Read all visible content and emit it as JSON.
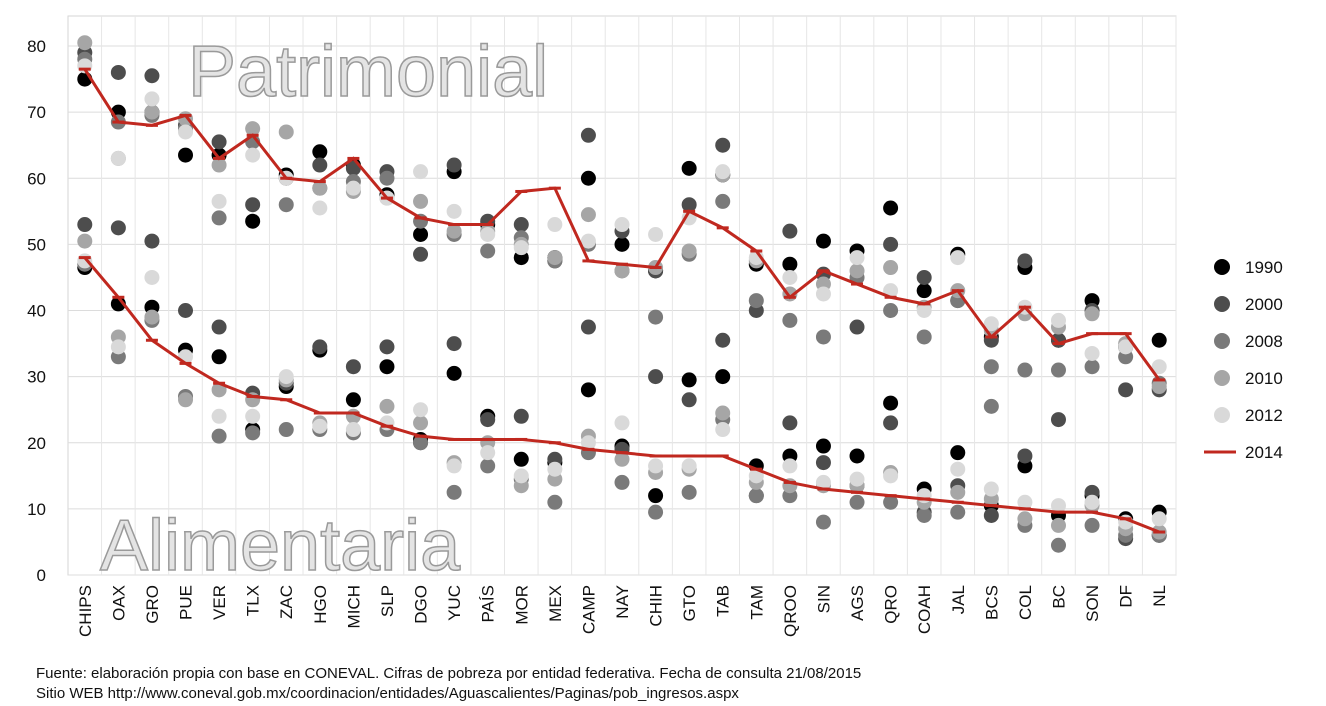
{
  "chart_data": {
    "type": "dot-line",
    "groups": [
      "Patrimonial",
      "Alimentaria"
    ],
    "categories": [
      "CHIPS",
      "OAX",
      "GRO",
      "PUE",
      "VER",
      "TLX",
      "ZAC",
      "HGO",
      "MICH",
      "SLP",
      "DGO",
      "YUC",
      "PAÍS",
      "MOR",
      "MEX",
      "CAMP",
      "NAY",
      "CHIH",
      "GTO",
      "TAB",
      "TAM",
      "QROO",
      "SIN",
      "AGS",
      "QRO",
      "COAH",
      "JAL",
      "BCS",
      "COL",
      "BC",
      "SON",
      "DF",
      "NL"
    ],
    "ylim": [
      0,
      80
    ],
    "yticks": [
      0,
      10,
      20,
      30,
      40,
      50,
      60,
      70,
      80
    ],
    "grid": true,
    "legend": "right",
    "series": [
      {
        "name": "1990",
        "color": "#000000",
        "mark": "dot",
        "values": [
          [
            75,
            70,
            70,
            63.5,
            63.5,
            53.5,
            60.5,
            64,
            62,
            57.5,
            51.5,
            61,
            53,
            48,
            48,
            60,
            50,
            46,
            61.5,
            60.5,
            47,
            47,
            50.5,
            49,
            55.5,
            43,
            48.5,
            36,
            46.5,
            35.5,
            41.5,
            34.5,
            35.5
          ],
          [
            46.5,
            41,
            40.5,
            34,
            33,
            22,
            28.5,
            34,
            26.5,
            31.5,
            20.5,
            30.5,
            24,
            17.5,
            17,
            28,
            19.5,
            12,
            29.5,
            30,
            16.5,
            18,
            19.5,
            18,
            26,
            13,
            18.5,
            10.5,
            16.5,
            9,
            12,
            8.5,
            9.5
          ]
        ]
      },
      {
        "name": "2000",
        "color": "#4d4d4d",
        "mark": "dot",
        "values": [
          [
            79,
            76,
            75.5,
            68,
            65.5,
            56,
            60,
            62,
            61.5,
            61,
            48.5,
            62,
            53.5,
            53,
            47.5,
            66.5,
            52,
            46,
            56,
            65,
            40,
            52,
            45.5,
            37.5,
            50,
            45,
            41.5,
            35.5,
            47.5,
            35.5,
            40,
            28,
            28
          ],
          [
            53,
            52.5,
            50.5,
            40,
            37.5,
            27.5,
            29,
            34.5,
            31.5,
            34.5,
            20,
            35,
            23.5,
            24,
            17.5,
            37.5,
            19,
            30,
            26.5,
            35.5,
            12,
            23,
            17,
            13.5,
            23,
            9.5,
            13.5,
            9,
            18,
            23.5,
            12.5,
            5.5,
            6
          ]
        ]
      },
      {
        "name": "2008",
        "color": "#7a7a7a",
        "mark": "dot",
        "values": [
          [
            78,
            68.5,
            69.5,
            67.5,
            54,
            65.5,
            56,
            58.5,
            59.5,
            60,
            53.5,
            51.5,
            49,
            51,
            47.5,
            50,
            46,
            39,
            48.5,
            56.5,
            41.5,
            38.5,
            36,
            45,
            40,
            36,
            41.5,
            31.5,
            31,
            31,
            31.5,
            33,
            29
          ],
          [
            47,
            33,
            38.5,
            27,
            21,
            21.5,
            22,
            22,
            21.5,
            22,
            20,
            12.5,
            16.5,
            14.5,
            11,
            18.5,
            14,
            9.5,
            12.5,
            23.5,
            12,
            12,
            8,
            11,
            11,
            9,
            9.5,
            25.5,
            7.5,
            4.5,
            7.5,
            6,
            6
          ]
        ]
      },
      {
        "name": "2010",
        "color": "#a6a6a6",
        "mark": "dot",
        "values": [
          [
            80.5,
            63,
            70,
            69,
            62,
            67.5,
            67,
            58.5,
            58,
            57,
            56.5,
            52,
            52,
            50,
            48,
            54.5,
            46,
            46.5,
            49,
            60.5,
            47.5,
            42.5,
            44,
            46,
            46.5,
            40.5,
            43,
            37,
            39.5,
            37.5,
            39.5,
            35,
            28.5
          ],
          [
            50.5,
            36,
            39,
            26.5,
            28,
            26.5,
            29.5,
            23,
            24,
            25.5,
            23,
            17,
            20,
            13.5,
            14.5,
            21,
            17.5,
            15.5,
            16,
            24.5,
            14,
            13.5,
            13.5,
            13.5,
            15.5,
            11,
            12.5,
            11.5,
            8.5,
            7.5,
            10.5,
            7,
            6.5
          ]
        ]
      },
      {
        "name": "2012",
        "color": "#d9d9d9",
        "mark": "dot",
        "values": [
          [
            77,
            63,
            72,
            67,
            56.5,
            63.5,
            60,
            55.5,
            58.5,
            57,
            61,
            55,
            51.5,
            49.5,
            53,
            50.5,
            53,
            51.5,
            54,
            61,
            48,
            45,
            42.5,
            48,
            43,
            40,
            48,
            38,
            40.5,
            38.5,
            33.5,
            34.5,
            31.5
          ],
          [
            47.5,
            34.5,
            45,
            33,
            24,
            24,
            30,
            22.5,
            22,
            23,
            25,
            16.5,
            18.5,
            15,
            16,
            20,
            23,
            16.5,
            16.5,
            22,
            15,
            16.5,
            14,
            14.5,
            15,
            12,
            16,
            13,
            11,
            10.5,
            11,
            8,
            8.5
          ]
        ]
      },
      {
        "name": "2014",
        "color": "#c0281f",
        "mark": "line",
        "values": [
          [
            76.5,
            68.5,
            68,
            69.5,
            63,
            66.5,
            60,
            59.5,
            63,
            57,
            54,
            53,
            53,
            58,
            58.5,
            47.5,
            47,
            46.5,
            55,
            52.5,
            49,
            42,
            46,
            44,
            42,
            41,
            43,
            36,
            40.5,
            35,
            36.5,
            36.5,
            29.5
          ],
          [
            48,
            42,
            35.5,
            32,
            29,
            27,
            26.5,
            24.5,
            24.5,
            22.5,
            21,
            20.5,
            20.5,
            20.5,
            20,
            19,
            18.5,
            18,
            18,
            18,
            16,
            14,
            13,
            12.5,
            12,
            11.5,
            11,
            10.5,
            10,
            9.5,
            9.5,
            8.5,
            6.5
          ]
        ]
      }
    ],
    "source": [
      "Fuente:  elaboración propia con base en CONEVAL. Cifras de pobreza por entidad federativa. Fecha de consulta  21/08/2015",
      "Sitio WEB http://www.coneval.gob.mx/coordinacion/entidades/Aguascalientes/Paginas/pob_ingresos.aspx"
    ]
  }
}
